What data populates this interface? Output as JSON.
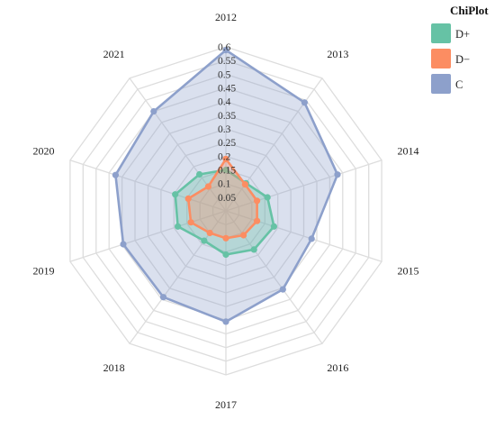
{
  "chart_data": {
    "type": "radar",
    "categories": [
      "2012",
      "2013",
      "2014",
      "2015",
      "2016",
      "2017",
      "2018",
      "2019",
      "2020",
      "2021"
    ],
    "rlim": [
      0,
      0.6
    ],
    "ticks": [
      "0.05",
      "0.1",
      "0.15",
      "0.2",
      "0.25",
      "0.3",
      "0.35",
      "0.4",
      "0.45",
      "0.5",
      "0.55",
      "0.6"
    ],
    "tick_values": [
      0.05,
      0.1,
      0.15,
      0.2,
      0.25,
      0.3,
      0.35,
      0.4,
      0.45,
      0.5,
      0.55,
      0.6
    ],
    "grid": true,
    "legend": {
      "title": "ChiPlot",
      "position": "top-right"
    },
    "series": [
      {
        "name": "C",
        "color": "#8da0cb",
        "values": [
          0.588,
          0.49,
          0.43,
          0.33,
          0.355,
          0.405,
          0.39,
          0.395,
          0.425,
          0.45
        ]
      },
      {
        "name": "D+",
        "color": "#66c2a5",
        "values": [
          0.15,
          0.125,
          0.16,
          0.185,
          0.175,
          0.16,
          0.135,
          0.185,
          0.195,
          0.165
        ]
      },
      {
        "name": "D−",
        "color": "#fc8d62",
        "values": [
          0.19,
          0.12,
          0.12,
          0.12,
          0.11,
          0.1,
          0.1,
          0.135,
          0.145,
          0.11
        ]
      }
    ]
  }
}
